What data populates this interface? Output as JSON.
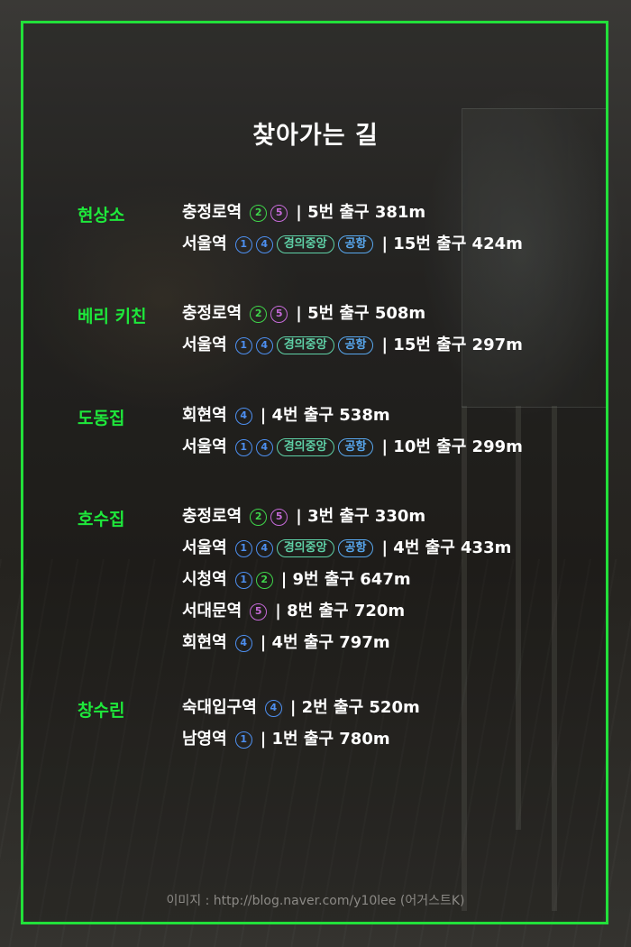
{
  "title": "찾아가는 길",
  "credit": "이미지 : http://blog.naver.com/y10lee (어거스트K)",
  "colors": {
    "frame": "#22e03a",
    "place": "#1ee83b",
    "line2": "#3fd44a",
    "line5": "#c56ad8",
    "line1_4": "#4d8ff0",
    "gyeongui": "#5fd1a7",
    "airport": "#58a7ee"
  },
  "sections": [
    {
      "name": "현상소",
      "routes": [
        {
          "station": "충정로역",
          "lines": [
            {
              "label": "②",
              "kind": "circle",
              "color": "green"
            },
            {
              "label": "⑤",
              "kind": "circle",
              "color": "purple"
            }
          ],
          "exit": "| 5번 출구 381m"
        },
        {
          "station": "서울역",
          "lines": [
            {
              "label": "①",
              "kind": "circle",
              "color": "blue"
            },
            {
              "label": "④",
              "kind": "circle",
              "color": "blue"
            },
            {
              "label": "경의중앙",
              "kind": "pill",
              "color": "teal"
            },
            {
              "label": "공항",
              "kind": "pill",
              "color": "blue"
            }
          ],
          "exit": "| 15번 출구 424m"
        }
      ]
    },
    {
      "name": "베리 키친",
      "routes": [
        {
          "station": "충정로역",
          "lines": [
            {
              "label": "②",
              "kind": "circle",
              "color": "green"
            },
            {
              "label": "⑤",
              "kind": "circle",
              "color": "purple"
            }
          ],
          "exit": "| 5번 출구 508m"
        },
        {
          "station": "서울역",
          "lines": [
            {
              "label": "①",
              "kind": "circle",
              "color": "blue"
            },
            {
              "label": "④",
              "kind": "circle",
              "color": "blue"
            },
            {
              "label": "경의중앙",
              "kind": "pill",
              "color": "teal"
            },
            {
              "label": "공항",
              "kind": "pill",
              "color": "blue"
            }
          ],
          "exit": "| 15번 출구 297m"
        }
      ]
    },
    {
      "name": "도동집",
      "routes": [
        {
          "station": "회현역",
          "lines": [
            {
              "label": "④",
              "kind": "circle",
              "color": "blue"
            }
          ],
          "exit": "| 4번 출구 538m"
        },
        {
          "station": "서울역",
          "lines": [
            {
              "label": "①",
              "kind": "circle",
              "color": "blue"
            },
            {
              "label": "④",
              "kind": "circle",
              "color": "blue"
            },
            {
              "label": "경의중앙",
              "kind": "pill",
              "color": "teal"
            },
            {
              "label": "공항",
              "kind": "pill",
              "color": "blue"
            }
          ],
          "exit": "| 10번 출구 299m"
        }
      ]
    },
    {
      "name": "호수집",
      "routes": [
        {
          "station": "충정로역",
          "lines": [
            {
              "label": "②",
              "kind": "circle",
              "color": "green"
            },
            {
              "label": "⑤",
              "kind": "circle",
              "color": "purple"
            }
          ],
          "exit": "| 3번 출구 330m"
        },
        {
          "station": "서울역",
          "lines": [
            {
              "label": "①",
              "kind": "circle",
              "color": "blue"
            },
            {
              "label": "④",
              "kind": "circle",
              "color": "blue"
            },
            {
              "label": "경의중앙",
              "kind": "pill",
              "color": "teal"
            },
            {
              "label": "공항",
              "kind": "pill",
              "color": "blue"
            }
          ],
          "exit": "| 4번 출구 433m"
        },
        {
          "station": "시청역",
          "lines": [
            {
              "label": "①",
              "kind": "circle",
              "color": "blue"
            },
            {
              "label": "②",
              "kind": "circle",
              "color": "green"
            }
          ],
          "exit": "| 9번 출구 647m"
        },
        {
          "station": "서대문역",
          "lines": [
            {
              "label": "⑤",
              "kind": "circle",
              "color": "purple"
            }
          ],
          "exit": "| 8번 출구 720m"
        },
        {
          "station": "회현역",
          "lines": [
            {
              "label": "④",
              "kind": "circle",
              "color": "blue"
            }
          ],
          "exit": "| 4번 출구 797m"
        }
      ]
    },
    {
      "name": "창수린",
      "routes": [
        {
          "station": "숙대입구역",
          "lines": [
            {
              "label": "④",
              "kind": "circle",
              "color": "blue"
            }
          ],
          "exit": "| 2번 출구 520m"
        },
        {
          "station": "남영역",
          "lines": [
            {
              "label": "①",
              "kind": "circle",
              "color": "blue"
            }
          ],
          "exit": "| 1번 출구 780m"
        }
      ]
    }
  ]
}
